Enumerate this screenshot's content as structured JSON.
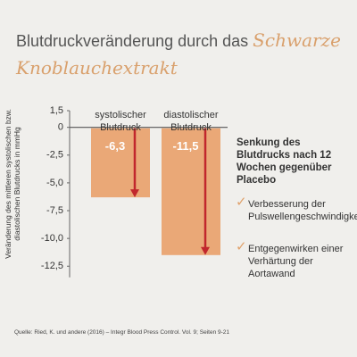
{
  "chart_data": {
    "type": "bar",
    "title": "Blutdruckveränderung durch das",
    "title_highlight": "Schwarze Knoblauchextrakt",
    "ylabel": "Veränderung des mittleren systolischen bzw. diastolischen Blutdrucks in mmHg",
    "categories": [
      "systolischer Blutdruck",
      "diastolischer Blutdruck"
    ],
    "values": [
      -6.3,
      -11.5
    ],
    "value_labels": [
      "-6,3",
      "-11,5"
    ],
    "color": "#eaa877",
    "arrow_color": "#c1272d",
    "ylim": [
      -13.5,
      1.5
    ],
    "yticks": [
      {
        "value": 1.5,
        "label": "1,5"
      },
      0,
      {
        "value": -2.5,
        "label": "-2,5"
      },
      {
        "value": -5,
        "label": "-5,0"
      },
      {
        "value": -7.5,
        "label": "-7,5"
      },
      {
        "value": -10,
        "label": "-10,0"
      },
      {
        "value": -12.5,
        "label": "-12,5"
      }
    ],
    "annotation_heading": "Senkung des Blutdrucks nach 12 Wochen gegenüber Placebo",
    "annotation_points": [
      "Verbesserung der Pulswellengeschwindigkeit",
      "Entgegenwirken einer Verhärtung der Aortawand"
    ],
    "source": "Quelle: Ried, K. und andere (2016) – Integr Blood Press Control. Vol. 9; Seiten 9-21"
  }
}
